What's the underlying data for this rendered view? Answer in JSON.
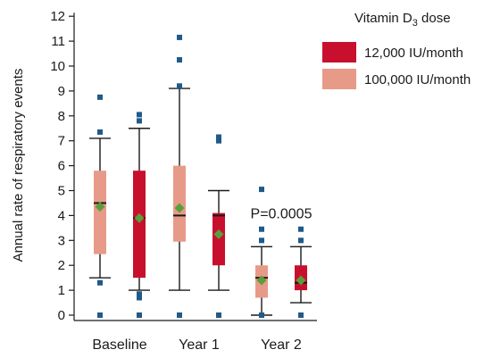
{
  "chart_data": {
    "type": "box",
    "ylabel": "Annual rate of respiratory events",
    "ylim": [
      0,
      12
    ],
    "yticks": [
      0,
      1,
      2,
      3,
      4,
      5,
      6,
      7,
      8,
      9,
      10,
      11,
      12
    ],
    "categories": [
      "Baseline",
      "Year 1",
      "Year 2"
    ],
    "legend": {
      "title_main": "Vitamin D",
      "title_sub": "3",
      "title_end": " dose",
      "placement": "top-right"
    },
    "annotation": {
      "text": "P=0.0005",
      "category": "Year 2",
      "y": 4.1
    },
    "colors": {
      "outlier": "#1f5a8a",
      "mean": "#5a9e3c",
      "whisker": "#1a1a1a",
      "median": "#1a1a1a"
    },
    "series": [
      {
        "name": "12,000 IU/month",
        "color": "#c8102e",
        "boxes": [
          {
            "category": "Baseline",
            "q1": 1.5,
            "median": 3.9,
            "q3": 5.8,
            "whisker_low": 1.0,
            "whisker_high": 7.5,
            "mean": 3.9,
            "outliers": [
              0.0,
              0.7,
              0.85,
              7.8,
              8.05
            ]
          },
          {
            "category": "Year 1",
            "q1": 2.0,
            "median": 4.0,
            "q3": 4.1,
            "whisker_low": 1.0,
            "whisker_high": 5.0,
            "mean": 3.25,
            "outliers": [
              0.0,
              7.0,
              7.15
            ]
          },
          {
            "category": "Year 2",
            "q1": 1.0,
            "median": 1.3,
            "q3": 2.0,
            "whisker_low": 0.5,
            "whisker_high": 2.75,
            "mean": 1.4,
            "outliers": [
              0.0,
              3.0,
              3.45
            ]
          }
        ]
      },
      {
        "name": "100,000 IU/month",
        "color": "#e89a88",
        "boxes": [
          {
            "category": "Baseline",
            "q1": 2.45,
            "median": 4.5,
            "q3": 5.8,
            "whisker_low": 1.5,
            "whisker_high": 7.1,
            "mean": 4.35,
            "outliers": [
              0.0,
              1.3,
              7.35,
              8.75
            ]
          },
          {
            "category": "Year 1",
            "q1": 2.95,
            "median": 4.0,
            "q3": 6.0,
            "whisker_low": 1.0,
            "whisker_high": 9.1,
            "mean": 4.3,
            "outliers": [
              0.0,
              9.2,
              10.25,
              11.15
            ]
          },
          {
            "category": "Year 2",
            "q1": 0.7,
            "median": 1.5,
            "q3": 2.0,
            "whisker_low": 0.0,
            "whisker_high": 2.75,
            "mean": 1.4,
            "outliers": [
              0.0,
              3.0,
              3.45,
              5.05
            ]
          }
        ]
      }
    ]
  }
}
